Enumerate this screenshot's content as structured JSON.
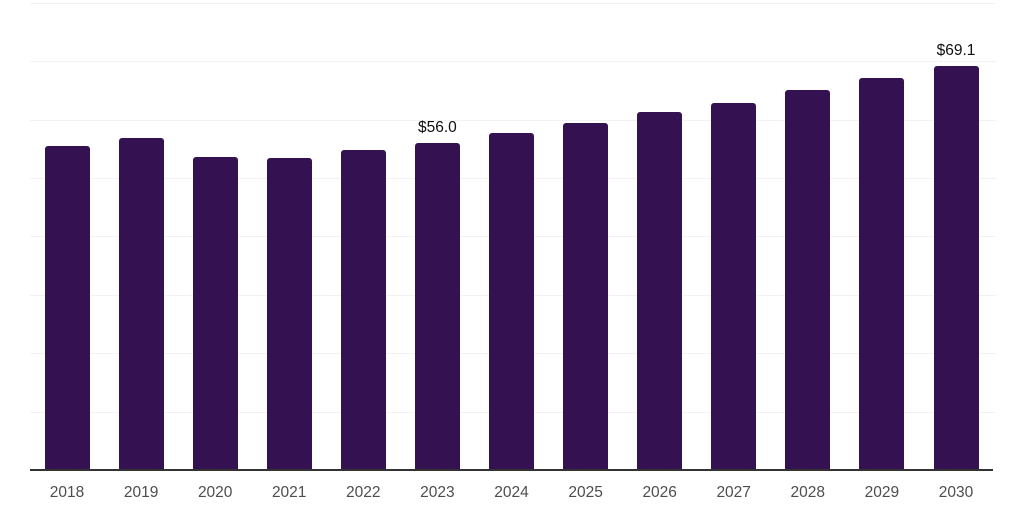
{
  "chart_data": {
    "type": "bar",
    "title": "",
    "xlabel": "",
    "ylabel": "",
    "categories": [
      "2018",
      "2019",
      "2020",
      "2021",
      "2022",
      "2023",
      "2024",
      "2025",
      "2026",
      "2027",
      "2028",
      "2029",
      "2030"
    ],
    "values": [
      55.5,
      56.9,
      53.6,
      53.4,
      54.8,
      56.0,
      57.7,
      59.4,
      61.2,
      62.9,
      65.0,
      67.1,
      69.1
    ],
    "data_labels": {
      "2023": "$56.0",
      "2030": "$69.1"
    },
    "ylim": [
      0,
      80
    ],
    "gridline_step": 10,
    "grid": "horizontal-only",
    "legend": "none",
    "colors": {
      "bar": "#341150",
      "gridline": "#f2f2f2",
      "axis_line": "#333333",
      "tick_label": "#4d4d4d",
      "data_label": "#0f0f0f",
      "background": "#ffffff"
    }
  }
}
